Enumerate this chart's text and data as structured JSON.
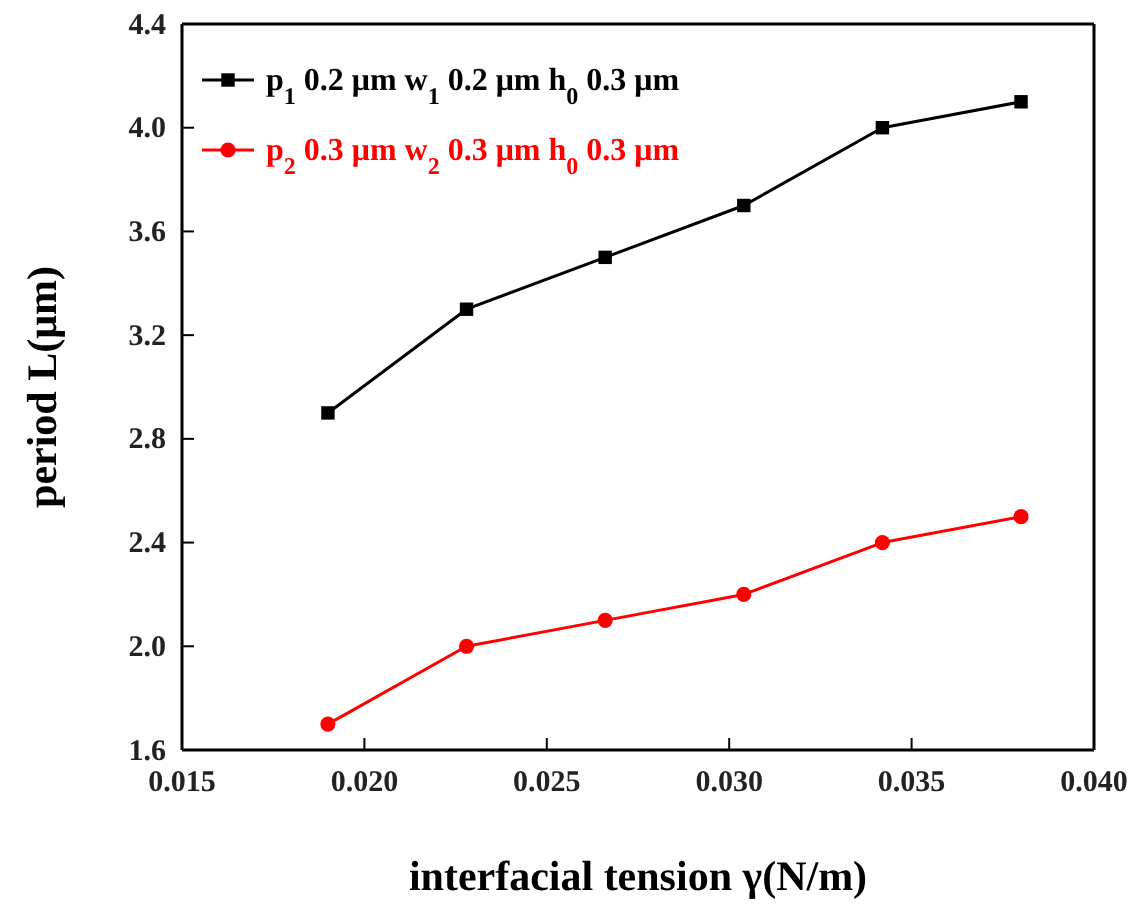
{
  "chart_data": {
    "type": "line",
    "xlabel": "interfacial tension γ(N/m)",
    "ylabel": "period  L(μm)",
    "x": [
      0.019,
      0.0228,
      0.0266,
      0.0304,
      0.0342,
      0.038
    ],
    "series": [
      {
        "name": "p$_{1}$ 0.2 μm w$_{1}$ 0.2 μm h$_{0}$ 0.3 μm",
        "color": "#000000",
        "marker": "square",
        "values": [
          2.9,
          3.3,
          3.5,
          3.7,
          4.0,
          4.1
        ]
      },
      {
        "name": "p$_{2}$ 0.3 μm w$_{2}$ 0.3 μm h$_{0}$ 0.3 μm",
        "color": "#ff0000",
        "marker": "circle",
        "values": [
          1.7,
          2.0,
          2.1,
          2.2,
          2.4,
          2.5
        ]
      }
    ],
    "xlim": [
      0.015,
      0.04
    ],
    "xticks": [
      {
        "value": 0.015,
        "label": "0.015"
      },
      {
        "value": 0.02,
        "label": "0.020"
      },
      {
        "value": 0.025,
        "label": "0.025"
      },
      {
        "value": 0.03,
        "label": "0.030"
      },
      {
        "value": 0.035,
        "label": "0.035"
      },
      {
        "value": 0.04,
        "label": "0.040"
      }
    ],
    "ylim": [
      1.6,
      4.4
    ],
    "yticks": [
      1.6,
      {
        "value": 2.0,
        "label": "2.0"
      },
      2.4,
      2.8,
      3.2,
      3.6,
      {
        "value": 4.0,
        "label": "4.0"
      },
      4.4
    ],
    "legend": "top left",
    "grid": false
  }
}
